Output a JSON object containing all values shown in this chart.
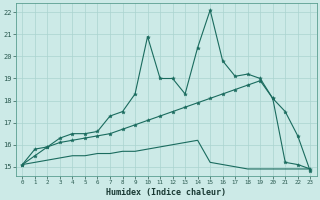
{
  "xlabel": "Humidex (Indice chaleur)",
  "bg_color": "#cceae7",
  "grid_color": "#aad4d0",
  "line_color": "#1a6b5e",
  "xlim": [
    -0.5,
    23.5
  ],
  "ylim": [
    14.6,
    22.4
  ],
  "xticks": [
    0,
    1,
    2,
    3,
    4,
    5,
    6,
    7,
    8,
    9,
    10,
    11,
    12,
    13,
    14,
    15,
    16,
    17,
    18,
    19,
    20,
    21,
    22,
    23
  ],
  "yticks": [
    15,
    16,
    17,
    18,
    19,
    20,
    21,
    22
  ],
  "line1_x": [
    0,
    1,
    2,
    3,
    4,
    5,
    6,
    7,
    8,
    9,
    10,
    11,
    12,
    13,
    14,
    15,
    16,
    17,
    18,
    19,
    20,
    21,
    22,
    23
  ],
  "line1_y": [
    15.1,
    15.8,
    15.9,
    16.3,
    16.5,
    16.5,
    16.6,
    17.3,
    17.5,
    18.3,
    20.9,
    19.0,
    19.0,
    18.3,
    20.4,
    22.1,
    19.8,
    19.1,
    19.2,
    19.0,
    18.1,
    17.5,
    16.4,
    14.8
  ],
  "line2_x": [
    0,
    1,
    2,
    3,
    4,
    5,
    6,
    7,
    8,
    9,
    10,
    11,
    12,
    13,
    14,
    15,
    16,
    17,
    18,
    19,
    20,
    21,
    22,
    23
  ],
  "line2_y": [
    15.1,
    15.5,
    15.9,
    16.1,
    16.2,
    16.3,
    16.4,
    16.5,
    16.7,
    16.9,
    17.1,
    17.3,
    17.5,
    17.7,
    17.9,
    18.1,
    18.3,
    18.5,
    18.7,
    18.9,
    18.1,
    15.2,
    15.1,
    14.9
  ],
  "line3_x": [
    0,
    1,
    2,
    3,
    4,
    5,
    6,
    7,
    8,
    9,
    10,
    11,
    12,
    13,
    14,
    15,
    16,
    17,
    18,
    19,
    20,
    21,
    22,
    23
  ],
  "line3_y": [
    15.1,
    15.2,
    15.3,
    15.4,
    15.5,
    15.5,
    15.6,
    15.6,
    15.7,
    15.7,
    15.8,
    15.9,
    16.0,
    16.1,
    16.2,
    15.2,
    15.1,
    15.0,
    14.9,
    14.9,
    14.9,
    14.9,
    14.9,
    14.9
  ]
}
